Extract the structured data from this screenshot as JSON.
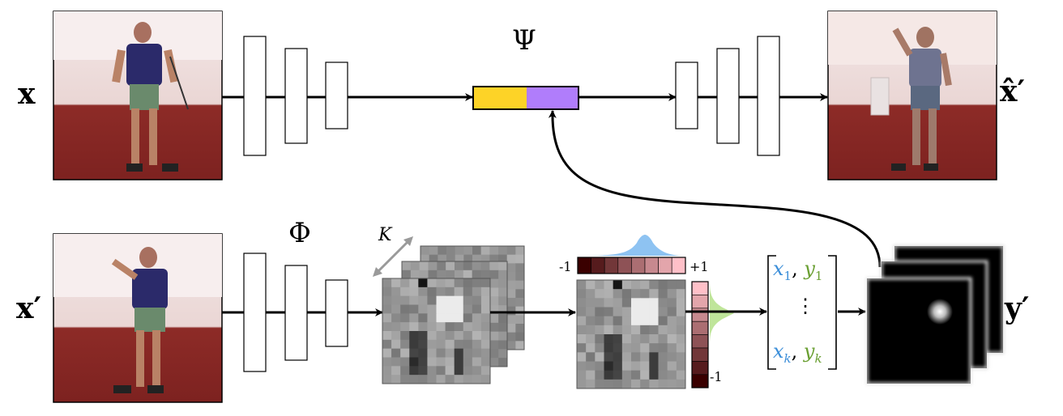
{
  "labels": {
    "x": "x",
    "x_hat_prime": "x̂′",
    "x_prime": "x′",
    "y_prime": "y′",
    "psi": "Ψ",
    "phi": "Φ",
    "k": "K"
  },
  "colorbar": {
    "left_label": "-1",
    "right_label": "+1",
    "bottom_label": "-1"
  },
  "keypoints": {
    "first": [
      "x",
      "1",
      "y",
      "1"
    ],
    "last": [
      "x",
      "k",
      "y",
      "k"
    ],
    "ellipsis": "⋮"
  },
  "colors": {
    "appearance_code": "#fdd327",
    "pose_code": "#b07dfb",
    "x_coord": "#3d8fd9",
    "y_coord": "#6a9f32",
    "heat_low": "#3a0000",
    "heat_high": "#ffc0c8",
    "gauss_blue": "#8ec3f2",
    "gauss_green": "#bfe59a"
  }
}
